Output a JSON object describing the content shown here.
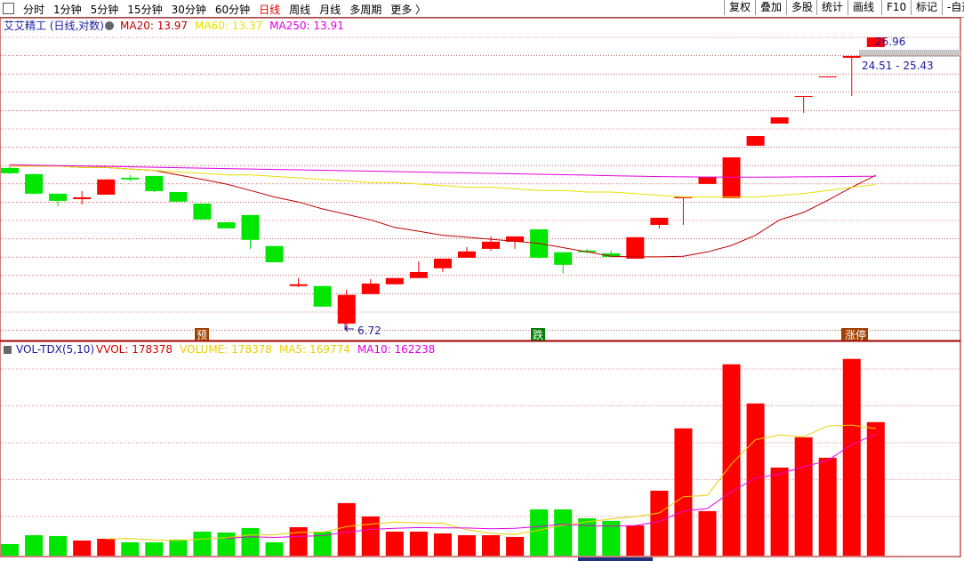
{
  "toolbar": {
    "tabs": [
      "分时",
      "1分钟",
      "5分钟",
      "15分钟",
      "30分钟",
      "60分钟",
      "日线",
      "周线",
      "月线",
      "多周期",
      "更多 〉"
    ],
    "buttons": [
      "复权",
      "叠加",
      "多股",
      "统计",
      "画线",
      "F10",
      "标记",
      "-自选"
    ]
  },
  "chart_data": [
    {
      "type": "candlestick",
      "title": "艾艾精工 (日线,对数)",
      "log": true,
      "ylim": [
        6.41,
        29.36
      ],
      "up_color": "#ff0000",
      "down_color": "#00e600",
      "open": [
        14.47,
        14.05,
        12.8,
        12.47,
        12.74,
        13.81,
        13.93,
        12.9,
        12.21,
        11.17,
        11.56,
        9.97,
        8.24,
        8.24,
        6.89,
        7.93,
        8.31,
        8.56,
        8.97,
        9.43,
        9.84,
        10.18,
        10.8,
        9.68,
        9.76,
        9.63,
        9.39,
        11.03,
        12.53,
        13.41,
        12.53,
        16.09,
        17.88,
        20.31,
        22.29,
        24.47,
        25.75
      ],
      "high": [
        14.59,
        14.11,
        12.8,
        12.96,
        13.7,
        13.99,
        13.93,
        12.9,
        12.21,
        11.17,
        11.56,
        9.97,
        8.56,
        8.24,
        8.1,
        8.52,
        8.56,
        9.27,
        9.39,
        9.92,
        10.44,
        10.44,
        10.8,
        9.68,
        9.84,
        9.76,
        10.4,
        11.41,
        12.63,
        13.87,
        15.22,
        16.85,
        18.42,
        20.39,
        22.39,
        24.68,
        26.96
      ],
      "low": [
        14.05,
        12.74,
        12.06,
        12.16,
        12.74,
        13.58,
        12.9,
        12.32,
        11.32,
        10.85,
        9.84,
        9.23,
        8.2,
        7.47,
        6.72,
        7.93,
        8.31,
        8.56,
        8.81,
        9.43,
        9.76,
        9.84,
        9.39,
        8.74,
        9.63,
        9.47,
        9.39,
        10.85,
        11.03,
        13.41,
        12.53,
        16.09,
        17.88,
        18.82,
        22.29,
        20.39,
        25.75
      ],
      "close": [
        14.11,
        12.8,
        12.37,
        12.58,
        13.7,
        13.7,
        12.96,
        12.32,
        11.32,
        10.85,
        10.27,
        9.23,
        8.31,
        7.47,
        7.9,
        8.34,
        8.56,
        8.81,
        9.39,
        9.72,
        10.18,
        10.44,
        9.43,
        9.12,
        9.68,
        9.47,
        10.4,
        11.41,
        12.63,
        13.87,
        15.22,
        16.85,
        18.42,
        20.39,
        22.39,
        24.68,
        26.96
      ],
      "series": [
        {
          "name": "MA20: 13.97",
          "color": "#c00000",
          "values": [
            14.6,
            14.6,
            14.6,
            14.5,
            14.5,
            14.4,
            14.3,
            14.0,
            13.7,
            13.4,
            13.0,
            12.6,
            12.3,
            11.9,
            11.6,
            11.3,
            10.9,
            10.7,
            10.5,
            10.4,
            10.3,
            10.2,
            10.1,
            9.9,
            9.7,
            9.5,
            9.47,
            9.47,
            9.5,
            9.7,
            10.0,
            10.5,
            11.3,
            11.7,
            12.4,
            13.2,
            13.97
          ]
        },
        {
          "name": "MA60: 13.37",
          "color": "#e8e000",
          "values": [
            14.6,
            14.6,
            14.6,
            14.5,
            14.5,
            14.4,
            14.3,
            14.2,
            14.1,
            14.0,
            14.0,
            13.9,
            13.8,
            13.7,
            13.6,
            13.5,
            13.5,
            13.4,
            13.3,
            13.2,
            13.2,
            13.1,
            13.0,
            13.0,
            12.9,
            12.9,
            12.8,
            12.7,
            12.6,
            12.6,
            12.6,
            12.6,
            12.7,
            12.8,
            13.0,
            13.2,
            13.37
          ]
        },
        {
          "name": "MA250: 13.91",
          "color": "#e000e0",
          "values": [
            14.7,
            14.67,
            14.64,
            14.61,
            14.58,
            14.55,
            14.52,
            14.49,
            14.46,
            14.43,
            14.4,
            14.37,
            14.34,
            14.31,
            14.28,
            14.25,
            14.22,
            14.19,
            14.16,
            14.13,
            14.1,
            14.07,
            14.04,
            14.01,
            13.98,
            13.95,
            13.92,
            13.89,
            13.87,
            13.86,
            13.85,
            13.85,
            13.86,
            13.87,
            13.88,
            13.9,
            13.91
          ]
        }
      ],
      "annotations": [
        "6.72",
        "26.96",
        "24.51 - 25.43",
        "预",
        "跌",
        "涨停"
      ]
    },
    {
      "type": "bar",
      "title": "VOL-TDX(5,10)",
      "ylim": [
        0,
        285000
      ],
      "series": [
        {
          "name": "VVOL: 178378",
          "color": "#d00000",
          "values": [
            15500,
            27300,
            26200,
            20200,
            22600,
            17800,
            17800,
            21400,
            32100,
            30900,
            36900,
            17800,
            38000,
            32100,
            70200,
            52300,
            32100,
            32100,
            29700,
            27300,
            27300,
            25000,
            61800,
            61800,
            49900,
            46400,
            40400,
            86800,
            170000,
            59500,
            255600,
            203300,
            117700,
            158100,
            130800,
            262800,
            178378
          ]
        },
        {
          "name": "MA5: 169774",
          "color": "#e8d000",
          "values": [
            null,
            null,
            null,
            null,
            22400,
            22800,
            20900,
            20000,
            22300,
            24000,
            27800,
            27800,
            31100,
            31100,
            39000,
            42100,
            44900,
            43800,
            43300,
            34700,
            29700,
            28300,
            34200,
            40600,
            45200,
            49000,
            52100,
            57100,
            78700,
            80600,
            122500,
            155000,
            161200,
            158800,
            173100,
            174500,
            169774
          ]
        },
        {
          "name": "MA10: 162238",
          "color": "#e000e0",
          "values": [
            null,
            null,
            null,
            null,
            null,
            null,
            null,
            null,
            null,
            23200,
            25300,
            24400,
            25600,
            26700,
            31500,
            35000,
            36400,
            37500,
            37200,
            36900,
            35900,
            36600,
            39000,
            42000,
            40000,
            39400,
            40200,
            45700,
            59700,
            62900,
            85800,
            103600,
            109200,
            118800,
            126900,
            148500,
            162238
          ]
        }
      ],
      "annotations": [
        "VOLUME: 178378"
      ]
    }
  ]
}
